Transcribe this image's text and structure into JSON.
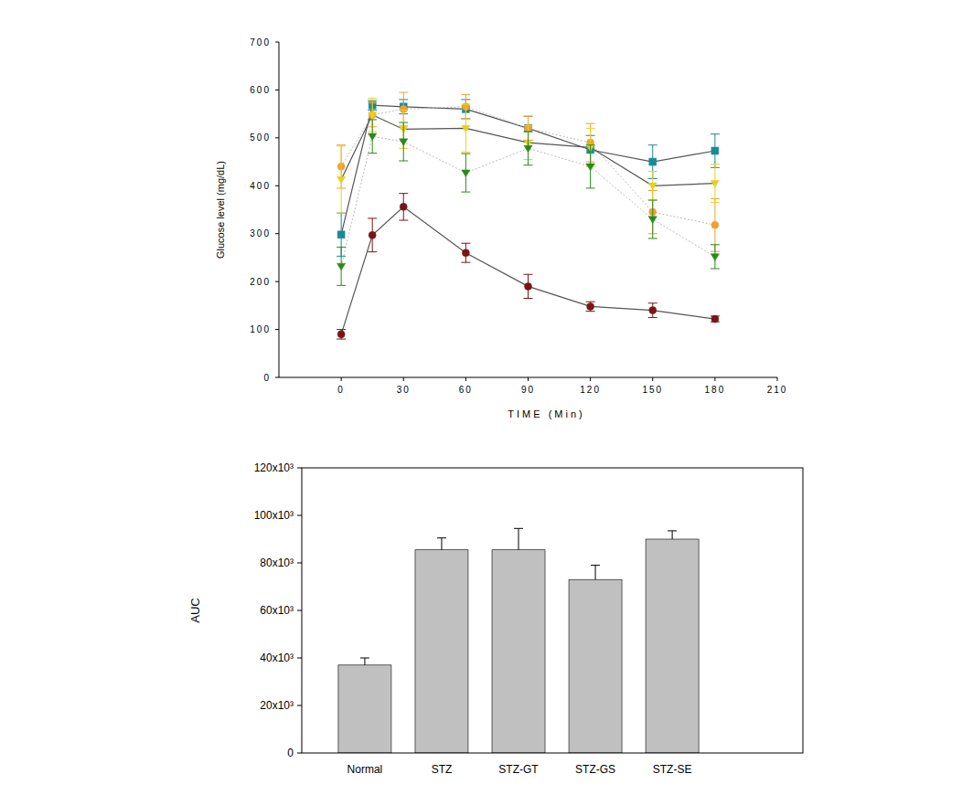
{
  "chart_data": [
    {
      "type": "line",
      "x_label": "TIME (Min)",
      "y_label": "Glucose level (mg/dL)",
      "x": [
        0,
        15,
        30,
        60,
        90,
        120,
        150,
        180
      ],
      "xlim": [
        -30,
        210
      ],
      "xticks": [
        0,
        30,
        60,
        90,
        120,
        150,
        180,
        210
      ],
      "ylim": [
        0,
        700
      ],
      "yticks": [
        0,
        100,
        200,
        300,
        400,
        500,
        600,
        700
      ],
      "grid": false,
      "series": [
        {
          "color": "#7b1414",
          "marker": "circle",
          "line_style": "solid",
          "values": [
            90,
            297,
            356,
            260,
            190,
            148,
            140,
            122
          ],
          "errors": [
            10,
            35,
            28,
            20,
            25,
            10,
            15,
            6
          ]
        },
        {
          "color": "#1a8a96",
          "marker": "square",
          "line_style": "solid",
          "values": [
            298,
            568,
            565,
            560,
            520,
            475,
            450,
            473
          ],
          "errors": [
            45,
            10,
            15,
            20,
            25,
            30,
            35,
            35
          ]
        },
        {
          "color": "#f0a030",
          "marker": "circle",
          "line_style": "dotted",
          "values": [
            440,
            548,
            560,
            565,
            520,
            490,
            345,
            318
          ],
          "errors": [
            45,
            25,
            35,
            25,
            25,
            40,
            45,
            55
          ]
        },
        {
          "color": "#e8d020",
          "marker": "triangle-down",
          "line_style": "solid",
          "values": [
            413,
            548,
            518,
            520,
            490,
            480,
            400,
            405
          ],
          "errors": [
            70,
            35,
            40,
            50,
            35,
            40,
            30,
            40
          ]
        },
        {
          "color": "#2a8a1a",
          "marker": "triangle-down",
          "line_style": "dotted",
          "values": [
            232,
            503,
            492,
            427,
            478,
            440,
            330,
            252
          ],
          "errors": [
            40,
            35,
            40,
            40,
            35,
            45,
            40,
            25
          ]
        }
      ]
    },
    {
      "type": "bar",
      "y_label": "AUC",
      "categories": [
        "Normal",
        "STZ",
        "STZ-GT",
        "STZ-GS",
        "STZ-SE"
      ],
      "values": [
        37000,
        85500,
        85500,
        73000,
        90000
      ],
      "errors": [
        3000,
        5000,
        9000,
        6000,
        3500
      ],
      "color": "#c0c0c0",
      "ylim": [
        0,
        120000
      ],
      "yticks": [
        0,
        {
          "value": 20000,
          "label": "20x10³"
        },
        {
          "value": 40000,
          "label": "40x10³"
        },
        {
          "value": 60000,
          "label": "60x10³"
        },
        {
          "value": 80000,
          "label": "80x10³"
        },
        {
          "value": 100000,
          "label": "100x10³"
        },
        {
          "value": 120000,
          "label": "120x10³"
        }
      ],
      "grid": false
    }
  ]
}
